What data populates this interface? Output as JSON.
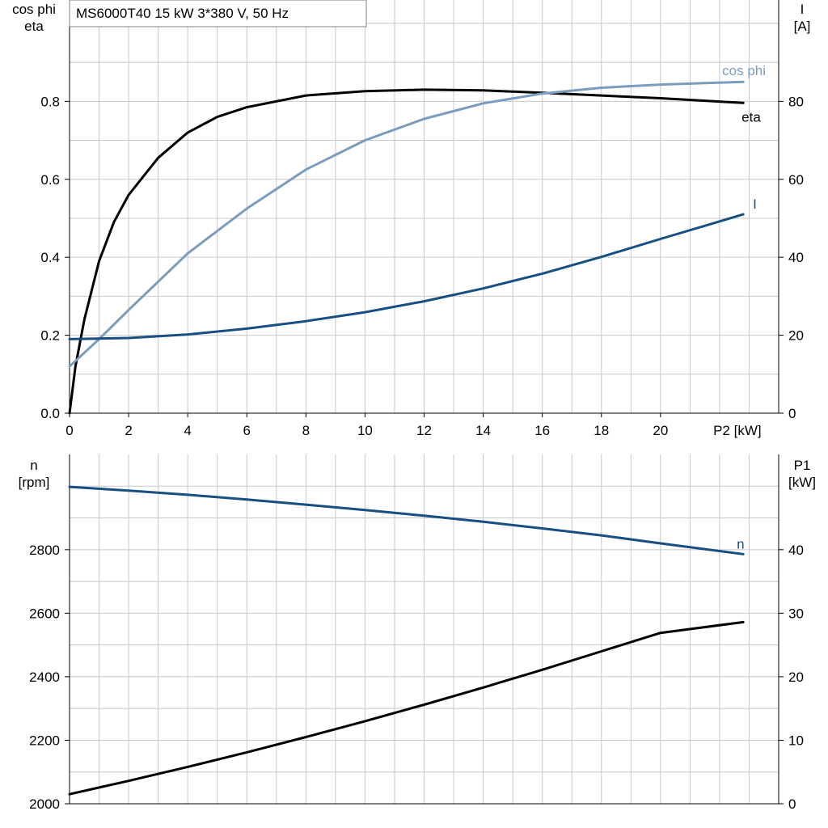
{
  "chart_data": [
    {
      "type": "line",
      "title": "MS6000T40   15 kW   3*380 V, 50 Hz",
      "xlabel": "P2 [kW]",
      "xlim": [
        0,
        24
      ],
      "x_ticks": [
        "0",
        "2",
        "4",
        "6",
        "8",
        "10",
        "12",
        "14",
        "16",
        "18",
        "20"
      ],
      "ylabel_left": [
        "cos phi",
        "eta"
      ],
      "ylim_left": [
        0,
        1.06
      ],
      "y_ticks_left": [
        "0.0",
        "0.2",
        "0.4",
        "0.6",
        "0.8"
      ],
      "ylabel_right": [
        "I",
        "[A]"
      ],
      "ylim_right": [
        0,
        106
      ],
      "y_ticks_right": [
        "0",
        "20",
        "40",
        "60",
        "80"
      ],
      "grid": true,
      "series": [
        {
          "name": "eta",
          "axis": "left",
          "color": "#000000",
          "x": [
            0,
            0.2,
            0.5,
            1,
            1.5,
            2,
            3,
            4,
            5,
            6,
            8,
            10,
            12,
            14,
            16,
            18,
            20,
            22.8
          ],
          "y": [
            0,
            0.12,
            0.24,
            0.39,
            0.49,
            0.56,
            0.655,
            0.72,
            0.76,
            0.785,
            0.815,
            0.826,
            0.83,
            0.828,
            0.822,
            0.815,
            0.808,
            0.796
          ]
        },
        {
          "name": "cos phi",
          "axis": "left",
          "color": "#7a9cbd",
          "x": [
            0,
            1,
            2,
            4,
            6,
            8,
            10,
            12,
            14,
            16,
            18,
            20,
            22.8
          ],
          "y": [
            0.12,
            0.19,
            0.265,
            0.41,
            0.525,
            0.625,
            0.7,
            0.755,
            0.795,
            0.82,
            0.835,
            0.843,
            0.85
          ]
        },
        {
          "name": "I",
          "axis": "right",
          "color": "#174f82",
          "x": [
            0,
            2,
            4,
            6,
            8,
            10,
            12,
            14,
            16,
            18,
            20,
            22.8
          ],
          "y": [
            19,
            19.3,
            20.2,
            21.7,
            23.6,
            25.9,
            28.7,
            32,
            35.8,
            40.1,
            44.7,
            51
          ]
        }
      ]
    },
    {
      "type": "line",
      "xlim": [
        0,
        24
      ],
      "ylabel_left": [
        "n",
        "[rpm]"
      ],
      "ylim_left": [
        2000,
        3100
      ],
      "y_ticks_left": [
        "2000",
        "2200",
        "2400",
        "2600",
        "2800"
      ],
      "ylabel_right": [
        "P1",
        "[kW]"
      ],
      "ylim_right": [
        0,
        55
      ],
      "y_ticks_right": [
        "0",
        "10",
        "20",
        "30",
        "40"
      ],
      "grid": true,
      "series": [
        {
          "name": "n",
          "axis": "left",
          "color": "#174f82",
          "x": [
            0,
            2,
            4,
            6,
            8,
            10,
            12,
            14,
            16,
            18,
            20,
            22.8
          ],
          "y": [
            2998,
            2986,
            2973,
            2958,
            2942,
            2925,
            2907,
            2888,
            2867,
            2845,
            2820,
            2786
          ]
        },
        {
          "name": "",
          "axis": "right",
          "color": "#000000",
          "x": [
            0,
            2,
            4,
            6,
            8,
            10,
            12,
            14,
            16,
            18,
            20,
            22.8
          ],
          "y": [
            1.5,
            3.6,
            5.8,
            8.1,
            10.5,
            13.0,
            15.6,
            18.3,
            21.1,
            24.0,
            26.9,
            28.6
          ]
        }
      ]
    }
  ]
}
